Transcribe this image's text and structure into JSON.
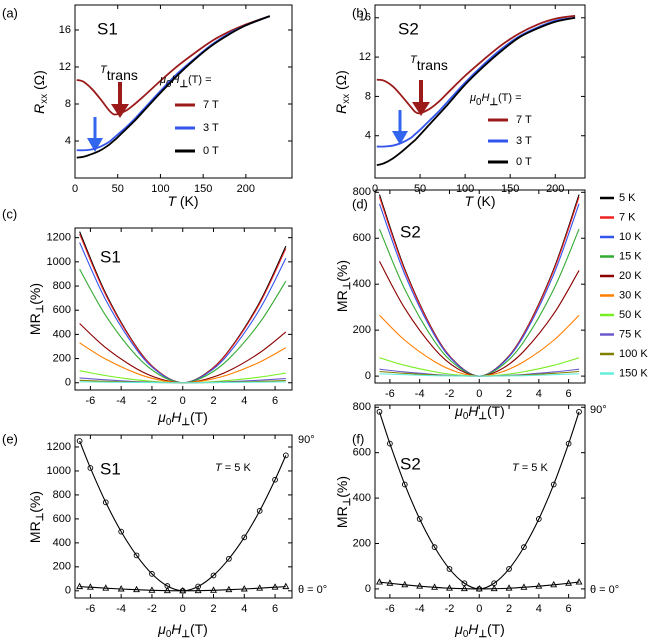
{
  "chart_data": [
    {
      "type": "line",
      "panel_label": "(a)",
      "sample": "S1",
      "x_label": [
        "T",
        " (K)"
      ],
      "y_label": [
        "R",
        "xx",
        " (Ω)"
      ],
      "xlim": [
        0,
        254
      ],
      "xticks": [
        0,
        50,
        100,
        150,
        200
      ],
      "ylim": [
        0,
        18.7
      ],
      "yticks": [
        4,
        8,
        12,
        16
      ],
      "annotation": [
        "T",
        "trans"
      ],
      "legend_title": [
        "μ",
        "0",
        "H",
        "⊥",
        "(T) ="
      ],
      "x": [
        2,
        10,
        20,
        30,
        40,
        45,
        50,
        60,
        70,
        80,
        100,
        120,
        140,
        160,
        180,
        200,
        228
      ],
      "series": [
        {
          "name": "7 T",
          "color": "#9b1b1b",
          "values": [
            10.6,
            10.4,
            9.6,
            8.5,
            7.3,
            6.9,
            6.9,
            7.3,
            8.0,
            8.8,
            10.5,
            12.1,
            13.5,
            14.8,
            15.8,
            16.6,
            17.5
          ]
        },
        {
          "name": "3 T",
          "color": "#3355ee",
          "values": [
            3.0,
            3.0,
            3.1,
            3.4,
            3.9,
            4.3,
            4.7,
            5.5,
            6.4,
            7.4,
            9.4,
            11.3,
            12.9,
            14.4,
            15.6,
            16.5,
            17.5
          ]
        },
        {
          "name": "0 T",
          "color": "#000000",
          "values": [
            2.2,
            2.3,
            2.6,
            3.0,
            3.6,
            4.0,
            4.4,
            5.3,
            6.2,
            7.2,
            9.2,
            11.1,
            12.8,
            14.3,
            15.5,
            16.5,
            17.5
          ]
        }
      ]
    },
    {
      "type": "line",
      "panel_label": "(b)",
      "sample": "S2",
      "x_label": [
        "T",
        " (K)"
      ],
      "y_label": [
        "R",
        "xx",
        " (Ω)"
      ],
      "xlim": [
        0,
        233
      ],
      "xticks": [
        0,
        50,
        100,
        150,
        200
      ],
      "ylim": [
        -0.3,
        17.3
      ],
      "yticks": [
        4,
        8,
        12,
        16
      ],
      "annotation": [
        "T",
        "trans"
      ],
      "legend_title": [
        "μ",
        "0",
        "H",
        "⊥",
        "(T) ="
      ],
      "x": [
        2,
        10,
        20,
        30,
        40,
        45,
        50,
        60,
        70,
        80,
        100,
        120,
        140,
        160,
        180,
        200,
        222
      ],
      "series": [
        {
          "name": "7 T",
          "color": "#9b1b1b",
          "values": [
            9.7,
            9.6,
            9.0,
            8.0,
            6.9,
            6.4,
            6.3,
            6.7,
            7.4,
            8.3,
            10.1,
            11.7,
            13.2,
            14.4,
            15.3,
            15.9,
            16.2
          ]
        },
        {
          "name": "3 T",
          "color": "#3355ee",
          "values": [
            2.9,
            2.9,
            3.0,
            3.3,
            3.8,
            4.2,
            4.6,
            5.5,
            6.4,
            7.4,
            9.4,
            11.2,
            12.8,
            14.1,
            15.0,
            15.7,
            16.0
          ]
        },
        {
          "name": "0 T",
          "color": "#000000",
          "values": [
            1.0,
            1.2,
            1.7,
            2.4,
            3.2,
            3.6,
            4.1,
            5.1,
            6.1,
            7.1,
            9.2,
            11.0,
            12.6,
            14.0,
            14.9,
            15.6,
            16.0
          ]
        }
      ]
    },
    {
      "type": "line",
      "panel_label": "(c)",
      "sample": "S1",
      "x_label": [
        "μ",
        "0",
        "H",
        "⊥",
        "(T)"
      ],
      "y_label": [
        "MR",
        "⊥",
        "(%)"
      ],
      "xlim": [
        -7,
        7.1
      ],
      "xticks": [
        -6,
        -4,
        -2,
        0,
        2,
        4,
        6
      ],
      "ylim": [
        -60,
        1280
      ],
      "yticks": [
        0,
        200,
        400,
        600,
        800,
        1000,
        1200
      ],
      "x": [
        -6.7,
        -5,
        -3,
        -1.5,
        0,
        1.5,
        3,
        5,
        6.7
      ],
      "series": [
        {
          "color": "#000000",
          "values": [
            1250,
            738,
            295,
            85,
            0,
            77,
            267,
            667,
            1130
          ]
        },
        {
          "color": "#ee2222",
          "values": [
            1230,
            726,
            290,
            84,
            0,
            75,
            262,
            655,
            1110
          ]
        },
        {
          "color": "#3355ee",
          "values": [
            1160,
            684,
            274,
            79,
            0,
            70,
            243,
            608,
            1030
          ]
        },
        {
          "color": "#33aa33",
          "values": [
            940,
            555,
            222,
            64,
            0,
            57,
            198,
            496,
            840
          ]
        },
        {
          "color": "#8b0000",
          "values": [
            490,
            289,
            116,
            33,
            0,
            29,
            99,
            248,
            420
          ]
        },
        {
          "color": "#ff7f00",
          "values": [
            330,
            195,
            78,
            22,
            0,
            20,
            68,
            171,
            290
          ]
        },
        {
          "color": "#77ee22",
          "values": [
            100,
            59,
            24,
            7,
            0,
            5,
            19,
            47,
            80
          ]
        },
        {
          "color": "#6a5acd",
          "values": [
            40,
            24,
            9,
            3,
            0,
            2,
            8,
            21,
            35
          ]
        },
        {
          "color": "#808000",
          "values": [
            20,
            12,
            5,
            1,
            0,
            1,
            4,
            11,
            18
          ]
        },
        {
          "color": "#66eedd",
          "values": [
            8,
            5,
            2,
            1,
            0,
            1,
            2,
            5,
            8
          ]
        }
      ]
    },
    {
      "type": "line",
      "panel_label": "(d)",
      "sample": "S2",
      "x_label": [
        "μ",
        "0",
        "H",
        "⊥",
        "(T)"
      ],
      "y_label": [
        "MR",
        "⊥",
        "(%)"
      ],
      "xlim": [
        -7,
        7.1
      ],
      "xticks": [
        -6,
        -4,
        -2,
        0,
        2,
        4,
        6
      ],
      "ylim": [
        -30,
        810
      ],
      "yticks": [
        0,
        200,
        400,
        600,
        800
      ],
      "x": [
        -6.7,
        -5,
        -3,
        -1.5,
        0,
        1.5,
        3,
        5,
        6.7
      ],
      "series": [
        {
          "name": "5 K",
          "color": "#000000",
          "values": [
            790,
            466,
            186,
            54,
            0,
            54,
            186,
            466,
            790
          ]
        },
        {
          "name": "7 K",
          "color": "#ee2222",
          "values": [
            780,
            460,
            184,
            53,
            0,
            53,
            184,
            460,
            780
          ]
        },
        {
          "name": "10 K",
          "color": "#3355ee",
          "values": [
            750,
            443,
            177,
            51,
            0,
            51,
            177,
            443,
            750
          ]
        },
        {
          "name": "15 K",
          "color": "#33aa33",
          "values": [
            640,
            378,
            151,
            44,
            0,
            44,
            151,
            378,
            640
          ]
        },
        {
          "name": "20 K",
          "color": "#8b0000",
          "values": [
            500,
            295,
            118,
            34,
            0,
            31,
            109,
            271,
            460
          ]
        },
        {
          "name": "30 K",
          "color": "#ff7f00",
          "values": [
            265,
            156,
            63,
            18,
            0,
            18,
            63,
            156,
            265
          ]
        },
        {
          "name": "50 K",
          "color": "#77ee22",
          "values": [
            80,
            47,
            19,
            5,
            0,
            5,
            19,
            47,
            80
          ]
        },
        {
          "name": "75 K",
          "color": "#6a5acd",
          "values": [
            30,
            18,
            7,
            2,
            0,
            2,
            7,
            18,
            30
          ]
        },
        {
          "name": "100 K",
          "color": "#808000",
          "values": [
            20,
            12,
            5,
            1,
            0,
            1,
            5,
            12,
            20
          ]
        },
        {
          "name": "150 K",
          "color": "#66eedd",
          "values": [
            10,
            6,
            2,
            1,
            0,
            1,
            2,
            6,
            10
          ]
        }
      ]
    },
    {
      "type": "line",
      "panel_label": "(e)",
      "sample": "S1",
      "x_label": [
        "μ",
        "0",
        "H",
        "⊥",
        "(T)"
      ],
      "y_label": [
        "MR",
        "⊥",
        "(%)"
      ],
      "xlim": [
        -7,
        7.1
      ],
      "xticks": [
        -6,
        -4,
        -2,
        0,
        2,
        4,
        6
      ],
      "ylim": [
        -60,
        1300
      ],
      "yticks": [
        0,
        200,
        400,
        600,
        800,
        1000,
        1200
      ],
      "condition": [
        "T",
        " = 5 K"
      ],
      "x": [
        -6.7,
        -6,
        -5,
        -4,
        -3,
        -2,
        -1,
        0,
        1,
        2,
        3,
        4,
        5,
        6,
        6.7
      ],
      "series": [
        {
          "name": "90°",
          "color": "#000000",
          "marker": "circle",
          "values": [
            1250,
            1025,
            738,
            494,
            295,
            141,
            40,
            0,
            36,
            128,
            267,
            446,
            667,
            927,
            1130
          ]
        },
        {
          "name": "θ = 0°",
          "color": "#000000",
          "marker": "triangle",
          "values": [
            35,
            30,
            22,
            15,
            9,
            4,
            1,
            0,
            1,
            4,
            9,
            15,
            22,
            30,
            35
          ]
        }
      ]
    },
    {
      "type": "line",
      "panel_label": "(f)",
      "sample": "S2",
      "x_label": [
        "μ",
        "0",
        "H",
        "⊥",
        "(T)"
      ],
      "y_label": [
        "MR",
        "⊥",
        "(%)"
      ],
      "xlim": [
        -7,
        7.1
      ],
      "xticks": [
        -6,
        -4,
        -2,
        0,
        2,
        4,
        6
      ],
      "ylim": [
        -40,
        810
      ],
      "yticks": [
        0,
        200,
        400,
        600,
        800
      ],
      "condition": [
        "T",
        " = 5 K"
      ],
      "x": [
        -6.7,
        -6,
        -5,
        -4,
        -3,
        -2,
        -1,
        0,
        1,
        2,
        3,
        4,
        5,
        6,
        6.7
      ],
      "series": [
        {
          "name": "90°",
          "color": "#000000",
          "marker": "circle",
          "values": [
            780,
            640,
            460,
            308,
            184,
            88,
            25,
            0,
            25,
            88,
            184,
            308,
            460,
            640,
            780
          ]
        },
        {
          "name": "θ = 0°",
          "color": "#000000",
          "marker": "triangle",
          "values": [
            30,
            25,
            18,
            12,
            7,
            3,
            1,
            0,
            1,
            3,
            7,
            12,
            18,
            25,
            30
          ]
        }
      ]
    }
  ]
}
